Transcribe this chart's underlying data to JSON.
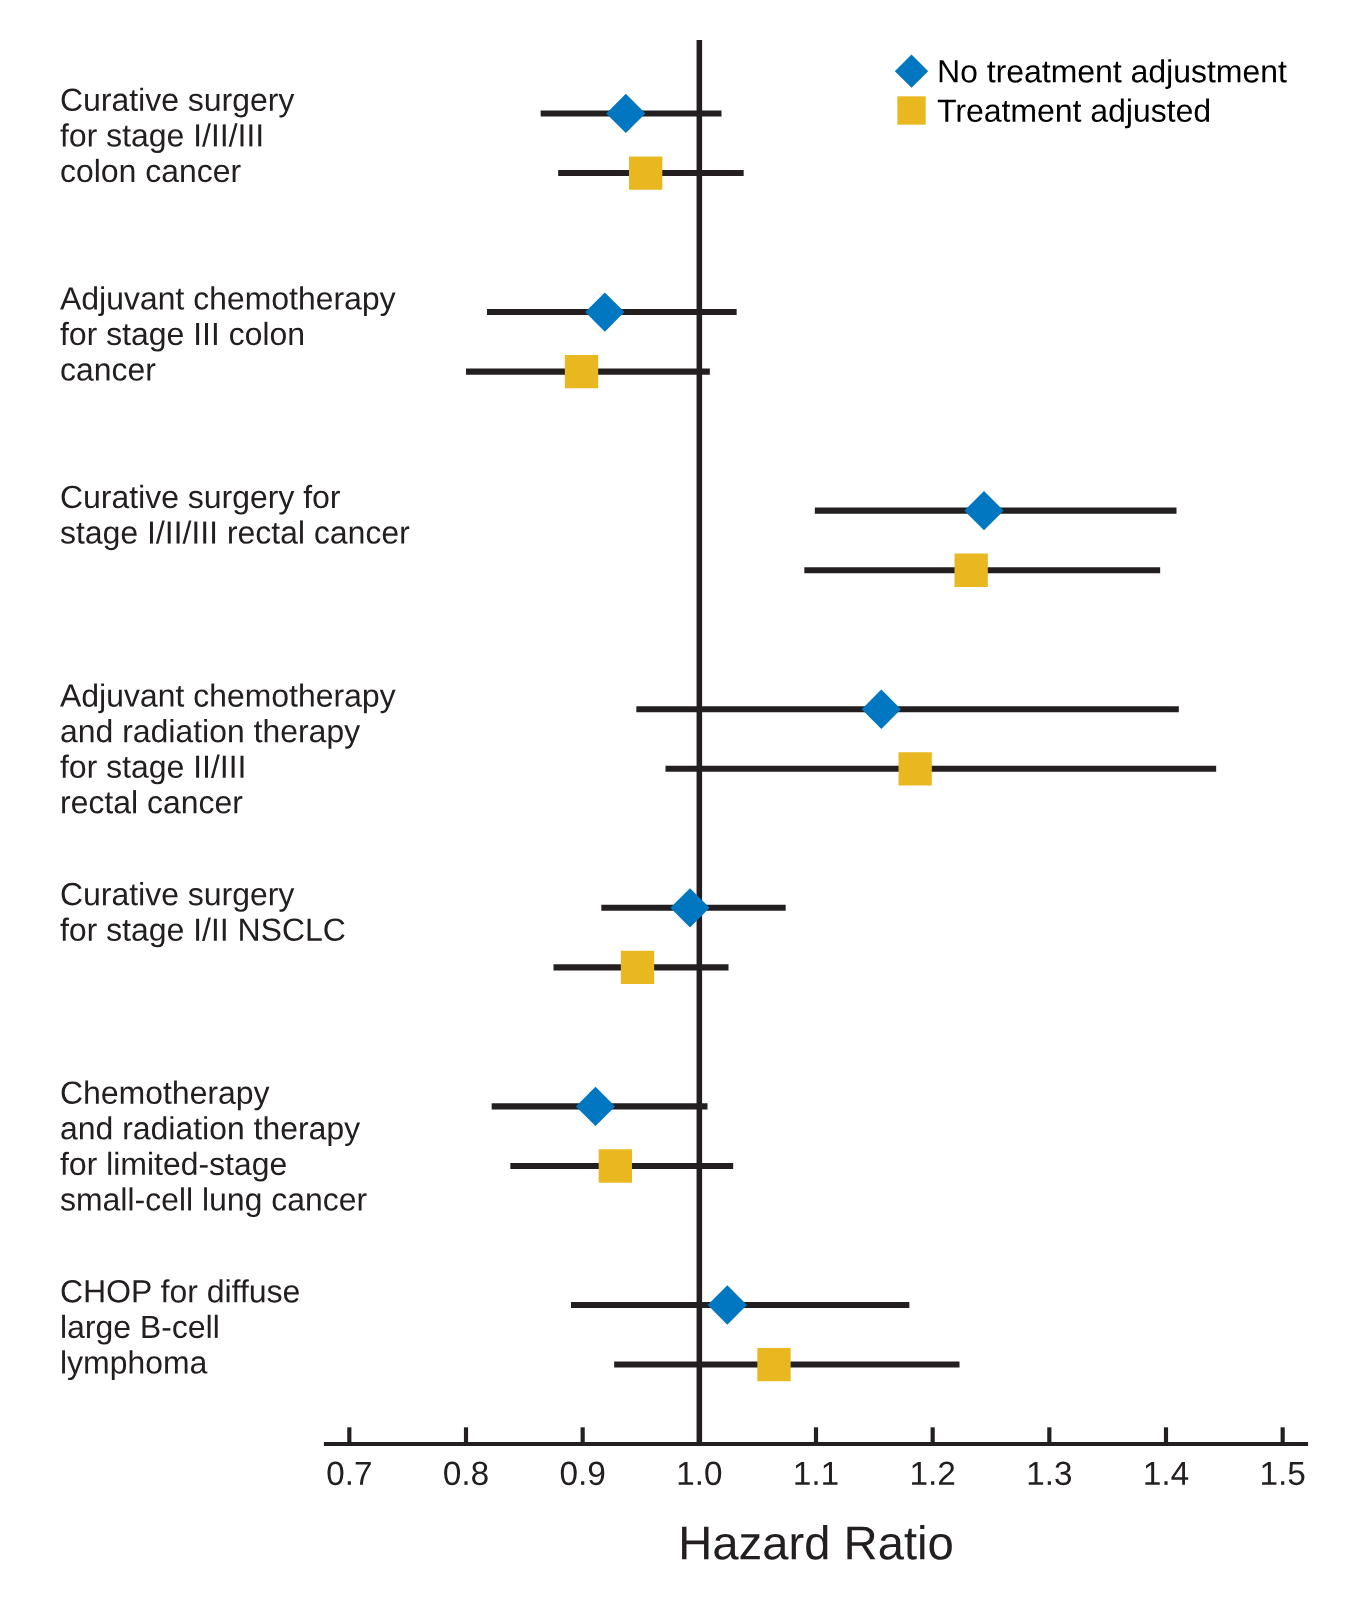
{
  "chart_data": {
    "type": "scatter",
    "orientation": "horizontal",
    "categories": [
      "Curative surgery\nfor stage I/II/III\ncolon cancer",
      "Adjuvant chemotherapy\nfor stage III colon\ncancer",
      "Curative surgery for\nstage I/II/III rectal cancer",
      "Adjuvant chemotherapy\nand radiation therapy\nfor stage II/III\nrectal cancer",
      "Curative surgery\nfor stage I/II NSCLC",
      "Chemotherapy\nand radiation therapy\nfor limited-stage\nsmall-cell lung cancer",
      "CHOP for diffuse\nlarge B-cell\nlymphoma"
    ],
    "series": [
      {
        "name": "No treatment adjustment",
        "color": "#0077c0",
        "marker": "diamond",
        "values": [
          0.937,
          0.919,
          1.244,
          1.156,
          0.992,
          0.911,
          1.024
        ],
        "errors": [
          [
            0.864,
            1.019
          ],
          [
            0.818,
            1.032
          ],
          [
            1.099,
            1.409
          ],
          [
            0.946,
            1.411
          ],
          [
            0.916,
            1.074
          ],
          [
            0.822,
            1.007
          ],
          [
            0.89,
            1.18
          ]
        ]
      },
      {
        "name": "Treatment adjusted",
        "color": "#e9b820",
        "marker": "square",
        "values": [
          0.954,
          0.899,
          1.233,
          1.185,
          0.947,
          0.928,
          1.064
        ],
        "errors": [
          [
            0.879,
            1.038
          ],
          [
            0.8,
            1.009
          ],
          [
            1.09,
            1.395
          ],
          [
            0.971,
            1.443
          ],
          [
            0.875,
            1.025
          ],
          [
            0.838,
            1.029
          ],
          [
            0.927,
            1.223
          ]
        ]
      }
    ],
    "xlabel": "Hazard Ratio",
    "xlim": [
      0.68,
      1.52
    ],
    "xticks": [
      0.7,
      0.8,
      0.9,
      "1.0",
      1.1,
      1.2,
      1.3,
      1.4,
      1.5
    ],
    "ref_lines": [
      {
        "axis": "x",
        "value": 1.0,
        "color": "#231f20"
      }
    ],
    "legend": "top right",
    "grid": false,
    "tick_labels": "x"
  }
}
